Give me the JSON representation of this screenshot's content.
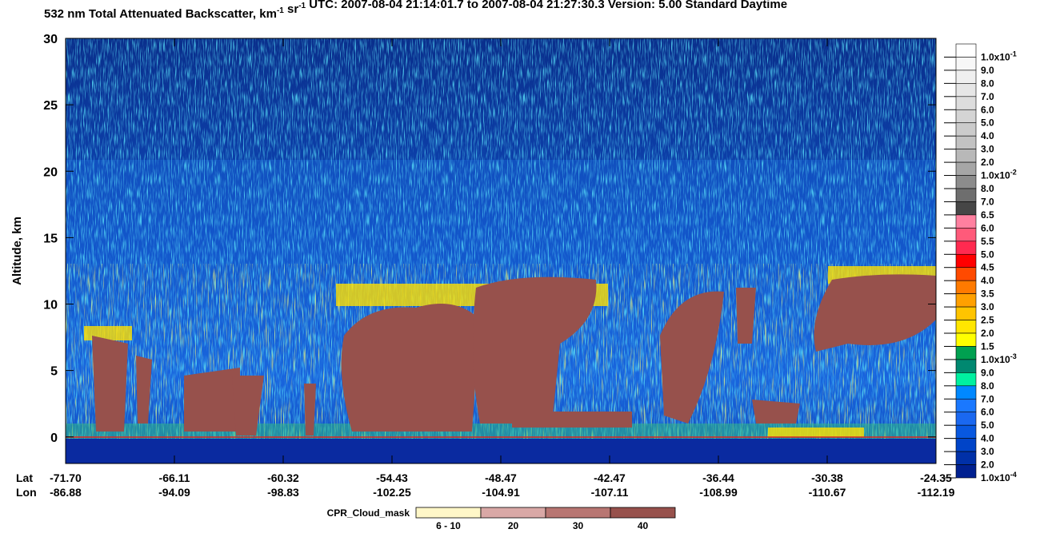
{
  "chart_data": {
    "type": "curtain",
    "title": {
      "parts": [
        "532 nm Total Attenuated Backscatter, km",
        "-1",
        " sr",
        "-1",
        "    UTC:  2007-08-04 21:14:01.7  to  2007-08-04 21:27:30.3    Version: 5.00  Standard  Daytime"
      ],
      "superscript": [
        false,
        true,
        false,
        true,
        false
      ]
    },
    "y_label": "Altitude, km",
    "ylim": [
      -2,
      30
    ],
    "yticks": [
      0,
      5,
      10,
      15,
      20,
      25,
      30
    ],
    "x_row_labels": [
      "Lat",
      "Lon"
    ],
    "lat": [
      "-71.70",
      "-66.11",
      "-60.32",
      "-54.43",
      "-48.47",
      "-42.47",
      "-36.44",
      "-30.38",
      "-24.35"
    ],
    "lon": [
      "-86.88",
      "-94.09",
      "-98.83",
      "-102.25",
      "-104.91",
      "-107.11",
      "-108.99",
      "-110.67",
      "-112.19"
    ],
    "colorbar": [
      {
        "label": "1.0x10",
        "exp": "-1",
        "color": "#ffffff"
      },
      {
        "label": "9.0",
        "color": "#f7f7f7"
      },
      {
        "label": "8.0",
        "color": "#efefef"
      },
      {
        "label": "7.0",
        "color": "#e6e6e6"
      },
      {
        "label": "6.0",
        "color": "#dddddd"
      },
      {
        "label": "5.0",
        "color": "#d4d4d4"
      },
      {
        "label": "4.0",
        "color": "#cbcbcb"
      },
      {
        "label": "3.0",
        "color": "#c2c2c2"
      },
      {
        "label": "2.0",
        "color": "#b8b8b8"
      },
      {
        "label": "1.0x10",
        "exp": "-2",
        "color": "#a6a6a6"
      },
      {
        "label": "8.0",
        "color": "#8c8c8c"
      },
      {
        "label": "7.0",
        "color": "#6e6e6e"
      },
      {
        "label": "6.5",
        "color": "#464646"
      },
      {
        "label": "6.0",
        "color": "#ff80a0"
      },
      {
        "label": "5.5",
        "color": "#ff5a7a"
      },
      {
        "label": "5.0",
        "color": "#ff2a50"
      },
      {
        "label": "4.5",
        "color": "#ff0000"
      },
      {
        "label": "4.0",
        "color": "#ff4a00"
      },
      {
        "label": "3.5",
        "color": "#ff7a00"
      },
      {
        "label": "3.0",
        "color": "#ffa000"
      },
      {
        "label": "2.5",
        "color": "#ffc400"
      },
      {
        "label": "2.0",
        "color": "#ffe600"
      },
      {
        "label": "1.5",
        "color": "#ffff00"
      },
      {
        "label": "1.0x10",
        "exp": "-3",
        "color": "#00a050"
      },
      {
        "label": "9.0",
        "color": "#008870"
      },
      {
        "label": "8.0",
        "color": "#00f0a0"
      },
      {
        "label": "7.0",
        "color": "#0088ff"
      },
      {
        "label": "6.0",
        "color": "#1a78ff"
      },
      {
        "label": "5.0",
        "color": "#1a68f0"
      },
      {
        "label": "4.0",
        "color": "#0858e0"
      },
      {
        "label": "3.0",
        "color": "#0044c8"
      },
      {
        "label": "2.0",
        "color": "#0030a8"
      },
      {
        "label": "1.0x10",
        "exp": "-4",
        "color": "#002090"
      }
    ],
    "cloud_mask": {
      "label": "CPR_Cloud_mask",
      "items": [
        {
          "label": "6 - 10",
          "color": "#fff7c8"
        },
        {
          "label": "20",
          "color": "#d9a8a6"
        },
        {
          "label": "30",
          "color": "#b87672"
        },
        {
          "label": "40",
          "color": "#97514c"
        }
      ]
    }
  }
}
